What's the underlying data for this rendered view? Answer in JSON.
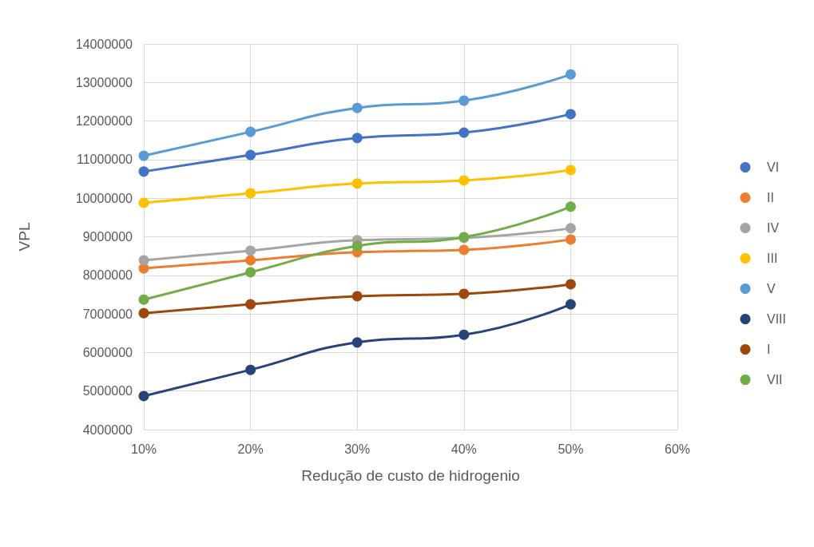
{
  "chart_data": {
    "type": "line",
    "xlabel": "Redução de custo de hidrogenio",
    "ylabel": "VPL",
    "x": [
      10,
      20,
      30,
      40,
      50
    ],
    "xlim": [
      10,
      60
    ],
    "xticks": [
      {
        "value": 10,
        "label": "10%"
      },
      {
        "value": 20,
        "label": "20%"
      },
      {
        "value": 30,
        "label": "30%"
      },
      {
        "value": 40,
        "label": "40%"
      },
      {
        "value": 50,
        "label": "50%"
      },
      {
        "value": 60,
        "label": "60%"
      }
    ],
    "ylim": [
      4000000,
      14000000
    ],
    "yticks": [
      4000000,
      5000000,
      6000000,
      7000000,
      8000000,
      9000000,
      10000000,
      11000000,
      12000000,
      13000000,
      14000000
    ],
    "grid": true,
    "legend": "right",
    "marker": "circle",
    "line_style": "solid",
    "series": [
      {
        "name": "VI",
        "color": "#4472c4",
        "values": [
          10690000,
          11120000,
          11560000,
          11700000,
          12180000
        ]
      },
      {
        "name": "II",
        "color": "#ed7d31",
        "values": [
          8180000,
          8390000,
          8600000,
          8660000,
          8930000
        ]
      },
      {
        "name": "IV",
        "color": "#a5a5a5",
        "values": [
          8390000,
          8640000,
          8910000,
          8970000,
          9220000
        ]
      },
      {
        "name": "III",
        "color": "#ffc000",
        "values": [
          9880000,
          10130000,
          10380000,
          10460000,
          10730000
        ]
      },
      {
        "name": "V",
        "color": "#5b9bd5",
        "values": [
          11100000,
          11720000,
          12340000,
          12530000,
          13210000
        ]
      },
      {
        "name": "VIII",
        "color": "#264478",
        "values": [
          4870000,
          5550000,
          6260000,
          6460000,
          7250000
        ]
      },
      {
        "name": "I",
        "color": "#9e480e",
        "values": [
          7020000,
          7250000,
          7460000,
          7520000,
          7770000
        ]
      },
      {
        "name": "VII",
        "color": "#70ad47",
        "values": [
          7370000,
          8080000,
          8760000,
          8990000,
          9780000
        ]
      }
    ]
  }
}
